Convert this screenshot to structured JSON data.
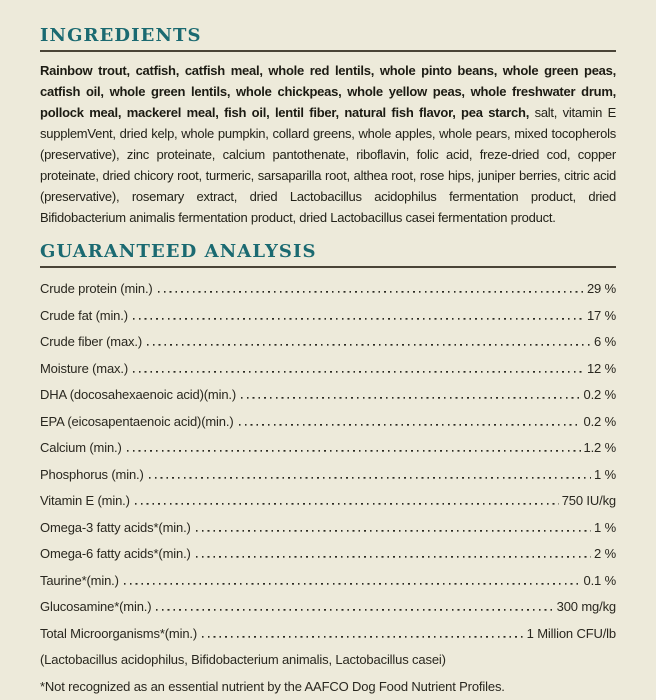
{
  "colors": {
    "background": "#edeada",
    "heading_teal": "#1b6a71",
    "rule_dark": "#4a4437",
    "body_text": "#232219"
  },
  "ingredients": {
    "title": "INGREDIENTS",
    "bold_text": "Rainbow trout, catfish, catfish meal, whole red lentils, whole pinto beans, whole green peas, catfish oil, whole green lentils, whole chickpeas, whole yellow peas, whole freshwater drum, pollock meal, mackerel meal, fish oil, lentil fiber, natural fish flavor, pea starch,",
    "regular_text": " salt, vitamin E supplemVent, dried kelp, whole pumpkin, collard greens, whole apples, whole pears, mixed tocopherols (preservative), zinc proteinate, calcium pantothenate, riboflavin, folic acid, freze-dried cod, copper proteinate, dried chicory root, turmeric, sarsaparilla root, althea root, rose hips, juniper berries, citric acid (preservative), rosemary extract, dried Lactobacillus acidophilus fermentation product, dried Bifidobacterium animalis fermentation product, dried Lactobacillus casei fermentation product."
  },
  "analysis": {
    "title": "GUARANTEED ANALYSIS",
    "rows": [
      {
        "label": "Crude protein (min.)",
        "value": "29 %"
      },
      {
        "label": "Crude fat (min.)",
        "value": "17 %"
      },
      {
        "label": "Crude fiber (max.)",
        "value": "6 %"
      },
      {
        "label": "Moisture (max.)",
        "value": "12 %"
      },
      {
        "label": "DHA (docosahexaenoic acid)(min.)",
        "value": "0.2 %"
      },
      {
        "label": "EPA (eicosapentaenoic acid)(min.)",
        "value": "0.2 %"
      },
      {
        "label": "Calcium (min.)",
        "value": "1.2 %"
      },
      {
        "label": "Phosphorus (min.)",
        "value": "1 %"
      },
      {
        "label": "Vitamin E (min.)",
        "value": "750 IU/kg"
      },
      {
        "label": "Omega-3 fatty acids*(min.)",
        "value": "1 %"
      },
      {
        "label": "Omega-6 fatty acids*(min.)",
        "value": "2 %"
      },
      {
        "label": "Taurine*(min.)",
        "value": "0.1 %"
      },
      {
        "label": "Glucosamine*(min.)",
        "value": "300 mg/kg"
      },
      {
        "label": "Total Microorganisms*(min.)",
        "value": "1 Million CFU/lb"
      }
    ],
    "subnote": "(Lactobacillus acidophilus, Bifidobacterium animalis, Lactobacillus casei)",
    "footnote": "*Not recognized as an essential nutrient by the AAFCO Dog Food Nutrient Profiles."
  }
}
